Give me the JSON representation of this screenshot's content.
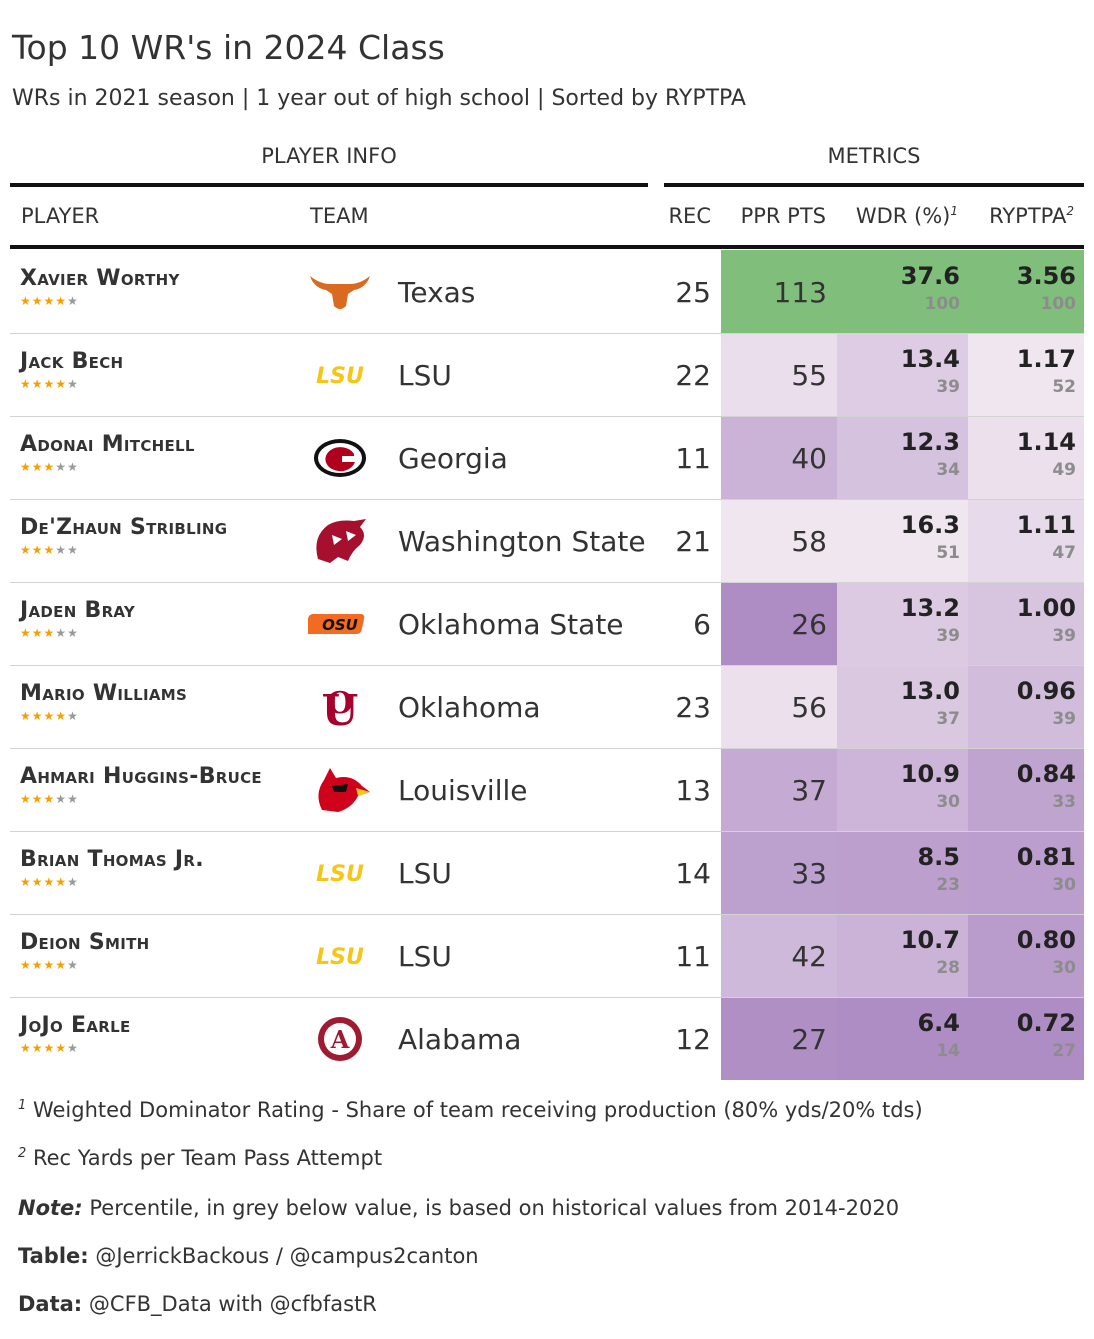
{
  "title": "Top 10 WR's in 2024 Class",
  "subtitle": "WRs in 2021 season | 1 year out of high school | Sorted by RYPTPA",
  "spanners": {
    "player_info": "PLAYER INFO",
    "metrics": "METRICS"
  },
  "columns": {
    "player": "PLAYER",
    "team": "TEAM",
    "rec": "REC",
    "ppr": "PPR PTS",
    "wdr": "WDR (%)",
    "wdr_sup": "1",
    "ryptpa": "RYPTPA",
    "ryptpa_sup": "2"
  },
  "colors": {
    "text": "#333333",
    "star": "#f5a000",
    "star_empty": "#9a9a9a",
    "high": "#7fbf7b",
    "purple_light": "#f0e6f0",
    "purple_dark": "#ae8cc4",
    "percentile_text": "#8c8c8c"
  },
  "chart_data": {
    "type": "table",
    "title": "Top 10 WR's in 2024 Class",
    "rows": [
      {
        "player": "Xavier Worthy",
        "stars": 4,
        "team": "Texas",
        "logo": "texas-longhorn-icon",
        "rec": "25",
        "ppr": "113",
        "wdr": "37.6",
        "wdr_pct": "100",
        "ryptpa": "3.56",
        "ryptpa_pct": "100"
      },
      {
        "player": "Jack Bech",
        "stars": 4,
        "team": "LSU",
        "logo": "lsu-icon",
        "rec": "22",
        "ppr": "55",
        "wdr": "13.4",
        "wdr_pct": "39",
        "ryptpa": "1.17",
        "ryptpa_pct": "52"
      },
      {
        "player": "Adonai Mitchell",
        "stars": 3,
        "team": "Georgia",
        "logo": "georgia-g-icon",
        "rec": "11",
        "ppr": "40",
        "wdr": "12.3",
        "wdr_pct": "34",
        "ryptpa": "1.14",
        "ryptpa_pct": "49"
      },
      {
        "player": "De'Zhaun Stribling",
        "stars": 3,
        "team": "Washington State",
        "logo": "wsu-cougar-icon",
        "rec": "21",
        "ppr": "58",
        "wdr": "16.3",
        "wdr_pct": "51",
        "ryptpa": "1.11",
        "ryptpa_pct": "47"
      },
      {
        "player": "Jaden Bray",
        "stars": 3,
        "team": "Oklahoma State",
        "logo": "osu-icon",
        "rec": "6",
        "ppr": "26",
        "wdr": "13.2",
        "wdr_pct": "39",
        "ryptpa": "1.00",
        "ryptpa_pct": "39"
      },
      {
        "player": "Mario Williams",
        "stars": 4,
        "team": "Oklahoma",
        "logo": "oklahoma-ou-icon",
        "rec": "23",
        "ppr": "56",
        "wdr": "13.0",
        "wdr_pct": "37",
        "ryptpa": "0.96",
        "ryptpa_pct": "39"
      },
      {
        "player": "Ahmari Huggins-Bruce",
        "stars": 3,
        "team": "Louisville",
        "logo": "louisville-cardinal-icon",
        "rec": "13",
        "ppr": "37",
        "wdr": "10.9",
        "wdr_pct": "30",
        "ryptpa": "0.84",
        "ryptpa_pct": "33"
      },
      {
        "player": "Brian Thomas Jr.",
        "stars": 4,
        "team": "LSU",
        "logo": "lsu-icon",
        "rec": "14",
        "ppr": "33",
        "wdr": "8.5",
        "wdr_pct": "23",
        "ryptpa": "0.81",
        "ryptpa_pct": "30"
      },
      {
        "player": "Deion Smith",
        "stars": 4,
        "team": "LSU",
        "logo": "lsu-icon",
        "rec": "11",
        "ppr": "42",
        "wdr": "10.7",
        "wdr_pct": "28",
        "ryptpa": "0.80",
        "ryptpa_pct": "30"
      },
      {
        "player": "JoJo Earle",
        "stars": 4,
        "team": "Alabama",
        "logo": "alabama-icon",
        "rec": "12",
        "ppr": "27",
        "wdr": "6.4",
        "wdr_pct": "14",
        "ryptpa": "0.72",
        "ryptpa_pct": "27"
      }
    ]
  },
  "footnotes": {
    "fn1_mark": "1",
    "fn1": "Weighted Dominator Rating - Share of team receiving production (80% yds/20% tds)",
    "fn2_mark": "2",
    "fn2": "Rec Yards per Team Pass Attempt",
    "note_label": "Note:",
    "note": "Percentile, in grey below value, is based on historical values from 2014-2020",
    "table_label": "Table:",
    "table": "@JerrickBackous / @campus2canton",
    "data_label": "Data:",
    "data": "@CFB_Data with @cfbfastR"
  }
}
